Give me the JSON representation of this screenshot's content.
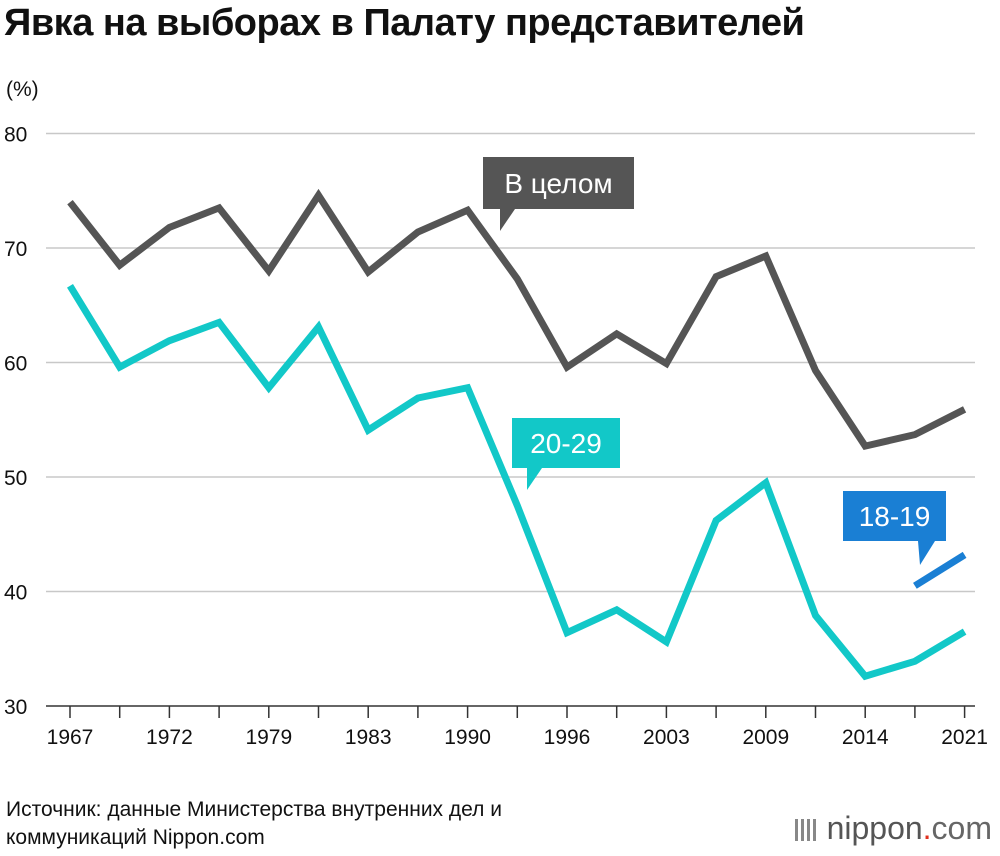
{
  "title": "Явка на выборах в Палату представителей",
  "unit": "(%)",
  "source_line1": "Источник: данные Министерства внутренних дел и",
  "source_line2": "коммуникаций Nippon.com",
  "logo": {
    "name": "nippon",
    "dot": ".",
    "tld": "com"
  },
  "chart_data": {
    "type": "line",
    "ylim": [
      30,
      80
    ],
    "y_ticks": [
      30,
      40,
      50,
      60,
      70,
      80
    ],
    "x_tick_labels": [
      "1967",
      "1972",
      "1979",
      "1983",
      "1990",
      "1996",
      "2003",
      "2009",
      "2014",
      "2021"
    ],
    "elections": [
      "1967",
      "1969",
      "1972",
      "1976",
      "1979",
      "1980",
      "1983",
      "1986",
      "1990",
      "1993",
      "1996",
      "2000",
      "2003",
      "2005",
      "2009",
      "2012",
      "2014",
      "2017",
      "2021"
    ],
    "grid": true,
    "series": [
      {
        "name": "В целом",
        "color": "#555555",
        "values": [
          74.0,
          68.5,
          71.8,
          73.5,
          68.0,
          74.6,
          67.9,
          71.4,
          73.3,
          67.3,
          59.6,
          62.5,
          59.9,
          67.5,
          69.3,
          59.3,
          52.7,
          53.7,
          55.9
        ]
      },
      {
        "name": "20-29",
        "color": "#12c8c8",
        "values": [
          66.7,
          59.6,
          61.9,
          63.5,
          57.8,
          63.1,
          54.1,
          56.9,
          57.8,
          47.5,
          36.4,
          38.4,
          35.6,
          46.2,
          49.5,
          37.9,
          32.6,
          33.9,
          36.5
        ]
      },
      {
        "name": "18-19",
        "color": "#1a7fd4",
        "start_index": 17,
        "values": [
          40.5,
          43.2
        ]
      }
    ]
  }
}
